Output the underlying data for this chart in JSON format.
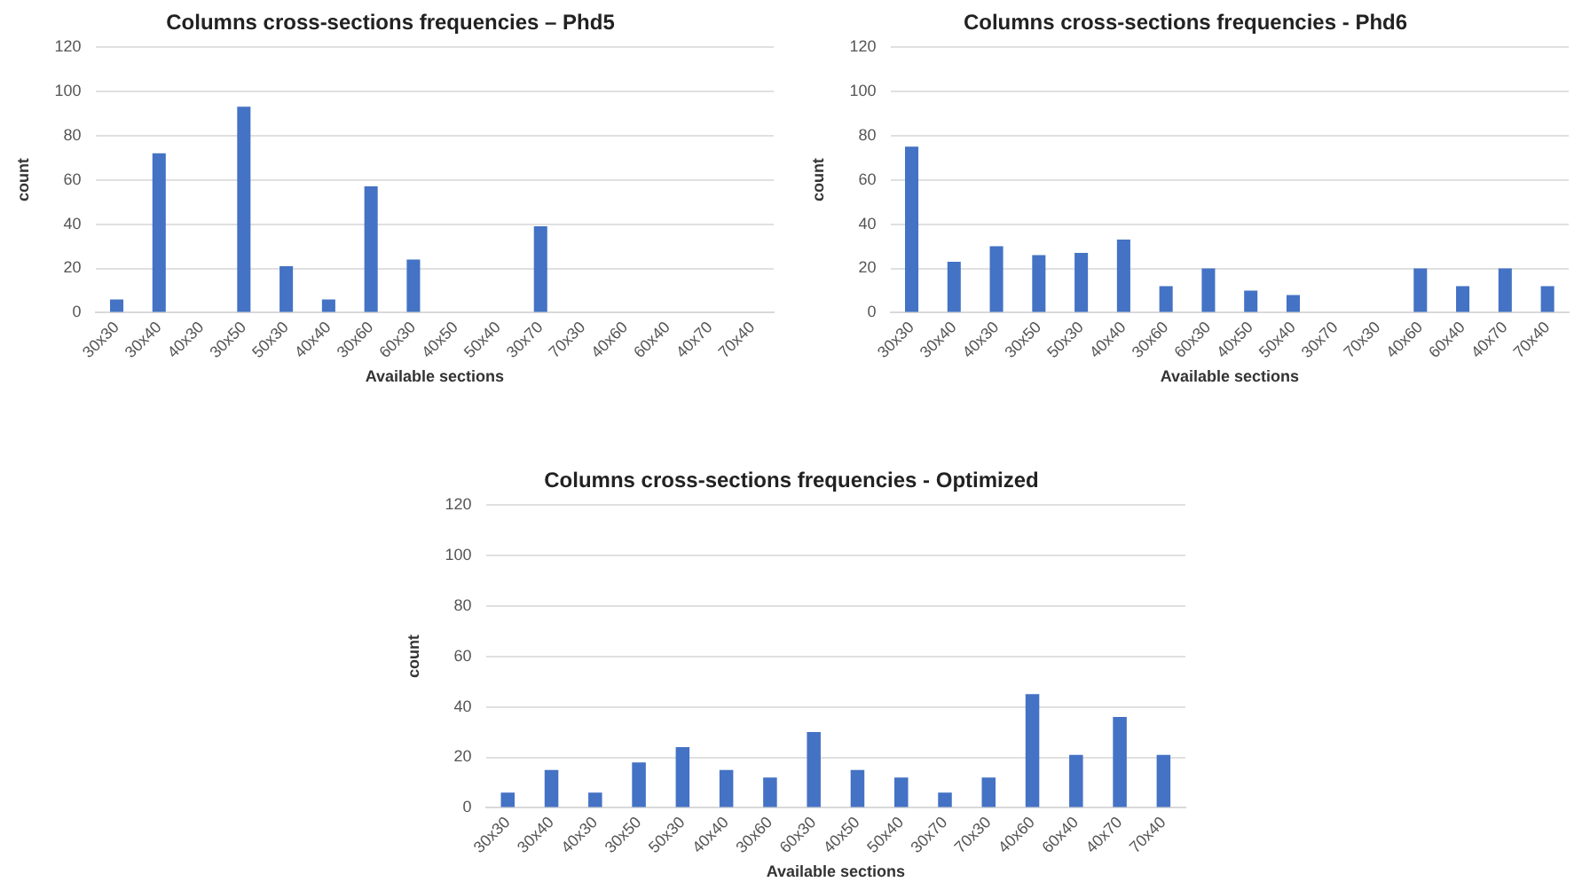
{
  "chart_data": [
    {
      "type": "bar",
      "title": "Columns cross-sections frequencies – Phd5",
      "xlabel": "Available sections",
      "ylabel": "count",
      "categories": [
        "30x30",
        "30x40",
        "40x30",
        "30x50",
        "50x30",
        "40x40",
        "30x60",
        "60x30",
        "40x50",
        "50x40",
        "30x70",
        "70x30",
        "40x60",
        "60x40",
        "40x70",
        "70x40"
      ],
      "series": [
        {
          "color": "#4472c4",
          "values": [
            6,
            72,
            0,
            93,
            21,
            6,
            57,
            24,
            0,
            0,
            39,
            0,
            0,
            0,
            0,
            0
          ]
        }
      ],
      "ylim": [
        0,
        120
      ],
      "yticks": [
        0,
        20,
        40,
        60,
        80,
        100,
        120
      ],
      "grid": "y",
      "legend": false
    },
    {
      "type": "bar",
      "title": "Columns cross-sections frequencies - Phd6",
      "xlabel": "Available sections",
      "ylabel": "count",
      "categories": [
        "30x30",
        "30x40",
        "40x30",
        "30x50",
        "50x30",
        "40x40",
        "30x60",
        "60x30",
        "40x50",
        "50x40",
        "30x70",
        "70x30",
        "40x60",
        "60x40",
        "40x70",
        "70x40"
      ],
      "series": [
        {
          "color": "#4472c4",
          "values": [
            75,
            23,
            30,
            26,
            27,
            33,
            12,
            20,
            10,
            8,
            0,
            0,
            20,
            12,
            20,
            12
          ]
        }
      ],
      "ylim": [
        0,
        120
      ],
      "yticks": [
        0,
        20,
        40,
        60,
        80,
        100,
        120
      ],
      "grid": "y",
      "legend": false
    },
    {
      "type": "bar",
      "title": "Columns cross-sections frequencies - Optimized",
      "xlabel": "Available sections",
      "ylabel": "count",
      "categories": [
        "30x30",
        "30x40",
        "40x30",
        "30x50",
        "50x30",
        "40x40",
        "30x60",
        "60x30",
        "40x50",
        "50x40",
        "30x70",
        "70x30",
        "40x60",
        "60x40",
        "40x70",
        "70x40"
      ],
      "series": [
        {
          "color": "#4472c4",
          "values": [
            6,
            15,
            6,
            18,
            24,
            15,
            12,
            30,
            15,
            12,
            6,
            12,
            45,
            21,
            36,
            21
          ]
        }
      ],
      "ylim": [
        0,
        120
      ],
      "yticks": [
        0,
        20,
        40,
        60,
        80,
        100,
        120
      ],
      "grid": "y",
      "legend": false
    }
  ]
}
